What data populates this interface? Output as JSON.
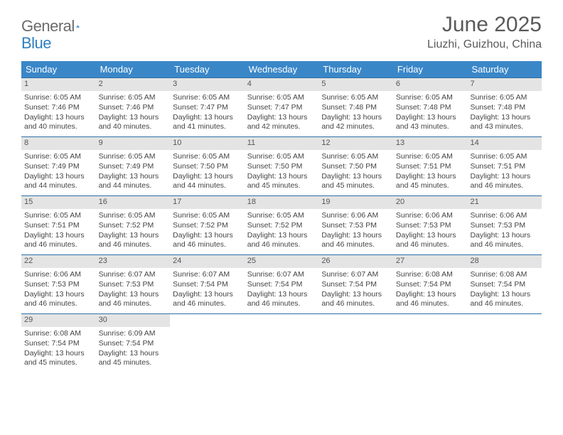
{
  "brand": {
    "word1": "General",
    "word2": "Blue"
  },
  "title": "June 2025",
  "location": "Liuzhi, Guizhou, China",
  "colors": {
    "header_bg": "#3a87c8",
    "header_text": "#ffffff",
    "daynum_bg": "#e4e4e4",
    "week_border": "#2f6fa8",
    "body_text": "#444444",
    "title_text": "#5a5a5a",
    "brand_gray": "#6b6b6b",
    "brand_blue": "#2f7fc1"
  },
  "day_headers": [
    "Sunday",
    "Monday",
    "Tuesday",
    "Wednesday",
    "Thursday",
    "Friday",
    "Saturday"
  ],
  "weeks": [
    [
      {
        "n": "1",
        "sunrise": "6:05 AM",
        "sunset": "7:46 PM",
        "dl": "13 hours and 40 minutes."
      },
      {
        "n": "2",
        "sunrise": "6:05 AM",
        "sunset": "7:46 PM",
        "dl": "13 hours and 40 minutes."
      },
      {
        "n": "3",
        "sunrise": "6:05 AM",
        "sunset": "7:47 PM",
        "dl": "13 hours and 41 minutes."
      },
      {
        "n": "4",
        "sunrise": "6:05 AM",
        "sunset": "7:47 PM",
        "dl": "13 hours and 42 minutes."
      },
      {
        "n": "5",
        "sunrise": "6:05 AM",
        "sunset": "7:48 PM",
        "dl": "13 hours and 42 minutes."
      },
      {
        "n": "6",
        "sunrise": "6:05 AM",
        "sunset": "7:48 PM",
        "dl": "13 hours and 43 minutes."
      },
      {
        "n": "7",
        "sunrise": "6:05 AM",
        "sunset": "7:48 PM",
        "dl": "13 hours and 43 minutes."
      }
    ],
    [
      {
        "n": "8",
        "sunrise": "6:05 AM",
        "sunset": "7:49 PM",
        "dl": "13 hours and 44 minutes."
      },
      {
        "n": "9",
        "sunrise": "6:05 AM",
        "sunset": "7:49 PM",
        "dl": "13 hours and 44 minutes."
      },
      {
        "n": "10",
        "sunrise": "6:05 AM",
        "sunset": "7:50 PM",
        "dl": "13 hours and 44 minutes."
      },
      {
        "n": "11",
        "sunrise": "6:05 AM",
        "sunset": "7:50 PM",
        "dl": "13 hours and 45 minutes."
      },
      {
        "n": "12",
        "sunrise": "6:05 AM",
        "sunset": "7:50 PM",
        "dl": "13 hours and 45 minutes."
      },
      {
        "n": "13",
        "sunrise": "6:05 AM",
        "sunset": "7:51 PM",
        "dl": "13 hours and 45 minutes."
      },
      {
        "n": "14",
        "sunrise": "6:05 AM",
        "sunset": "7:51 PM",
        "dl": "13 hours and 46 minutes."
      }
    ],
    [
      {
        "n": "15",
        "sunrise": "6:05 AM",
        "sunset": "7:51 PM",
        "dl": "13 hours and 46 minutes."
      },
      {
        "n": "16",
        "sunrise": "6:05 AM",
        "sunset": "7:52 PM",
        "dl": "13 hours and 46 minutes."
      },
      {
        "n": "17",
        "sunrise": "6:05 AM",
        "sunset": "7:52 PM",
        "dl": "13 hours and 46 minutes."
      },
      {
        "n": "18",
        "sunrise": "6:05 AM",
        "sunset": "7:52 PM",
        "dl": "13 hours and 46 minutes."
      },
      {
        "n": "19",
        "sunrise": "6:06 AM",
        "sunset": "7:53 PM",
        "dl": "13 hours and 46 minutes."
      },
      {
        "n": "20",
        "sunrise": "6:06 AM",
        "sunset": "7:53 PM",
        "dl": "13 hours and 46 minutes."
      },
      {
        "n": "21",
        "sunrise": "6:06 AM",
        "sunset": "7:53 PM",
        "dl": "13 hours and 46 minutes."
      }
    ],
    [
      {
        "n": "22",
        "sunrise": "6:06 AM",
        "sunset": "7:53 PM",
        "dl": "13 hours and 46 minutes."
      },
      {
        "n": "23",
        "sunrise": "6:07 AM",
        "sunset": "7:53 PM",
        "dl": "13 hours and 46 minutes."
      },
      {
        "n": "24",
        "sunrise": "6:07 AM",
        "sunset": "7:54 PM",
        "dl": "13 hours and 46 minutes."
      },
      {
        "n": "25",
        "sunrise": "6:07 AM",
        "sunset": "7:54 PM",
        "dl": "13 hours and 46 minutes."
      },
      {
        "n": "26",
        "sunrise": "6:07 AM",
        "sunset": "7:54 PM",
        "dl": "13 hours and 46 minutes."
      },
      {
        "n": "27",
        "sunrise": "6:08 AM",
        "sunset": "7:54 PM",
        "dl": "13 hours and 46 minutes."
      },
      {
        "n": "28",
        "sunrise": "6:08 AM",
        "sunset": "7:54 PM",
        "dl": "13 hours and 46 minutes."
      }
    ],
    [
      {
        "n": "29",
        "sunrise": "6:08 AM",
        "sunset": "7:54 PM",
        "dl": "13 hours and 45 minutes."
      },
      {
        "n": "30",
        "sunrise": "6:09 AM",
        "sunset": "7:54 PM",
        "dl": "13 hours and 45 minutes."
      },
      {
        "empty": true
      },
      {
        "empty": true
      },
      {
        "empty": true
      },
      {
        "empty": true
      },
      {
        "empty": true
      }
    ]
  ],
  "labels": {
    "sunrise": "Sunrise: ",
    "sunset": "Sunset: ",
    "daylight": "Daylight: "
  }
}
